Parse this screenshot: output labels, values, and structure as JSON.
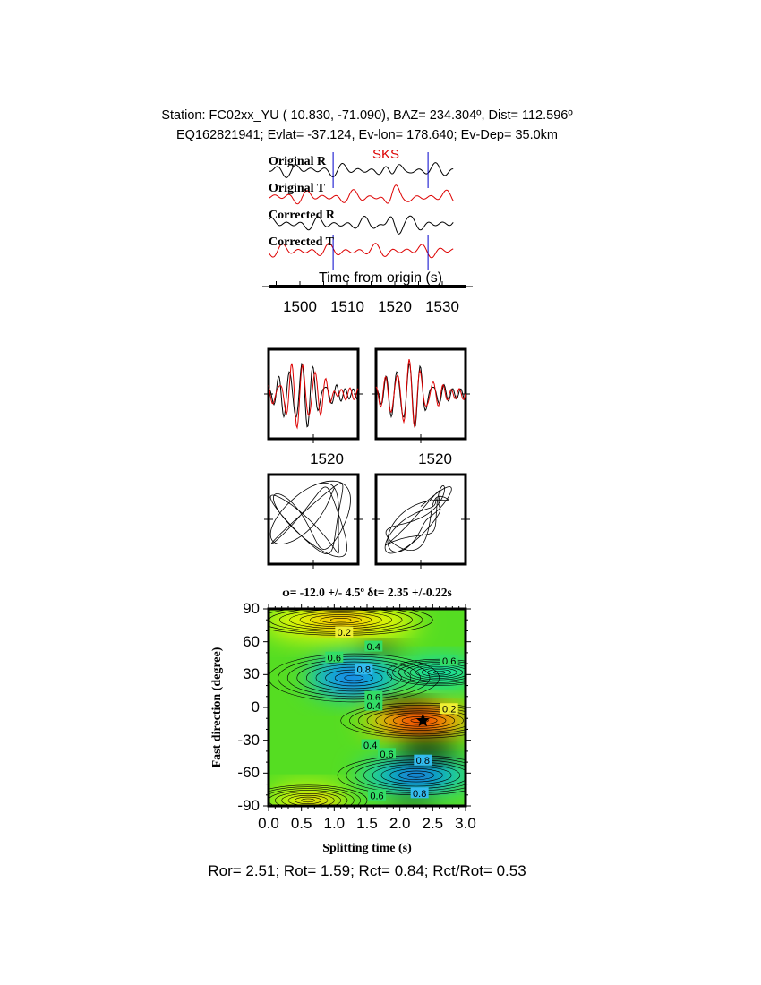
{
  "header": {
    "line1": "Station: FC02xx_YU (  10.830,  -71.090), BAZ=  234.304º, Dist=  112.596º",
    "line2": "EQ162821941; Evlat= -37.124, Ev-lon= 178.640; Ev-Dep= 35.0km"
  },
  "chart_data": [
    {
      "type": "line",
      "panel": "seismograms",
      "traces": [
        {
          "name": "Original R",
          "color": "#000000"
        },
        {
          "name": "Original T",
          "color": "#dd0000"
        },
        {
          "name": "Corrected R",
          "color": "#000000"
        },
        {
          "name": "Corrected T",
          "color": "#dd0000"
        }
      ],
      "phase_label": "SKS",
      "phase_color": "#dd0000",
      "window_markers_s": [
        1507,
        1527
      ],
      "marker_color": "#0000cc",
      "xlabel": "Time from origin (s)",
      "xticks": [
        "1500",
        "1510",
        "1520",
        "1530"
      ],
      "xlim": [
        1492,
        1533
      ]
    },
    {
      "type": "line",
      "panel": "particle-waveforms",
      "tick_labels": [
        "1520",
        "1520"
      ]
    },
    {
      "type": "scatter",
      "panel": "particle-motion"
    },
    {
      "type": "heatmap",
      "panel": "energy-grid",
      "title": "φ= -12.0 +/- 4.5º δt= 2.35 +/-0.22s",
      "xlabel": "Splitting time (s)",
      "ylabel": "Fast direction (degree)",
      "xlim": [
        0,
        3
      ],
      "ylim": [
        -90,
        90
      ],
      "xticks": [
        "0.0",
        "0.5",
        "1.0",
        "1.5",
        "2.0",
        "2.5",
        "3.0"
      ],
      "yticks": [
        "90",
        "60",
        "30",
        "0",
        "-30",
        "-60",
        "-90"
      ],
      "best_fit": {
        "dt": 2.35,
        "phi": -12.0
      },
      "contour_labels": [
        {
          "text": "0.2",
          "dt": 1.15,
          "phi": 69
        },
        {
          "text": "0.4",
          "dt": 1.6,
          "phi": 56
        },
        {
          "text": "0.6",
          "dt": 1.0,
          "phi": 46
        },
        {
          "text": "0.8",
          "dt": 1.45,
          "phi": 35
        },
        {
          "text": "0.6",
          "dt": 2.75,
          "phi": 43
        },
        {
          "text": "0.6",
          "dt": 1.6,
          "phi": 10
        },
        {
          "text": "0.4",
          "dt": 1.6,
          "phi": 2
        },
        {
          "text": "0.2",
          "dt": 2.75,
          "phi": -1
        },
        {
          "text": "0.4",
          "dt": 1.55,
          "phi": -34
        },
        {
          "text": "0.6",
          "dt": 1.8,
          "phi": -42
        },
        {
          "text": "0.8",
          "dt": 2.35,
          "phi": -48
        },
        {
          "text": "0.8",
          "dt": 2.3,
          "phi": -78
        },
        {
          "text": "0.6",
          "dt": 1.65,
          "phi": -80
        }
      ]
    }
  ],
  "footer": "Ror= 2.51; Rot= 1.59; Rct= 0.84; Rct/Rot= 0.53"
}
